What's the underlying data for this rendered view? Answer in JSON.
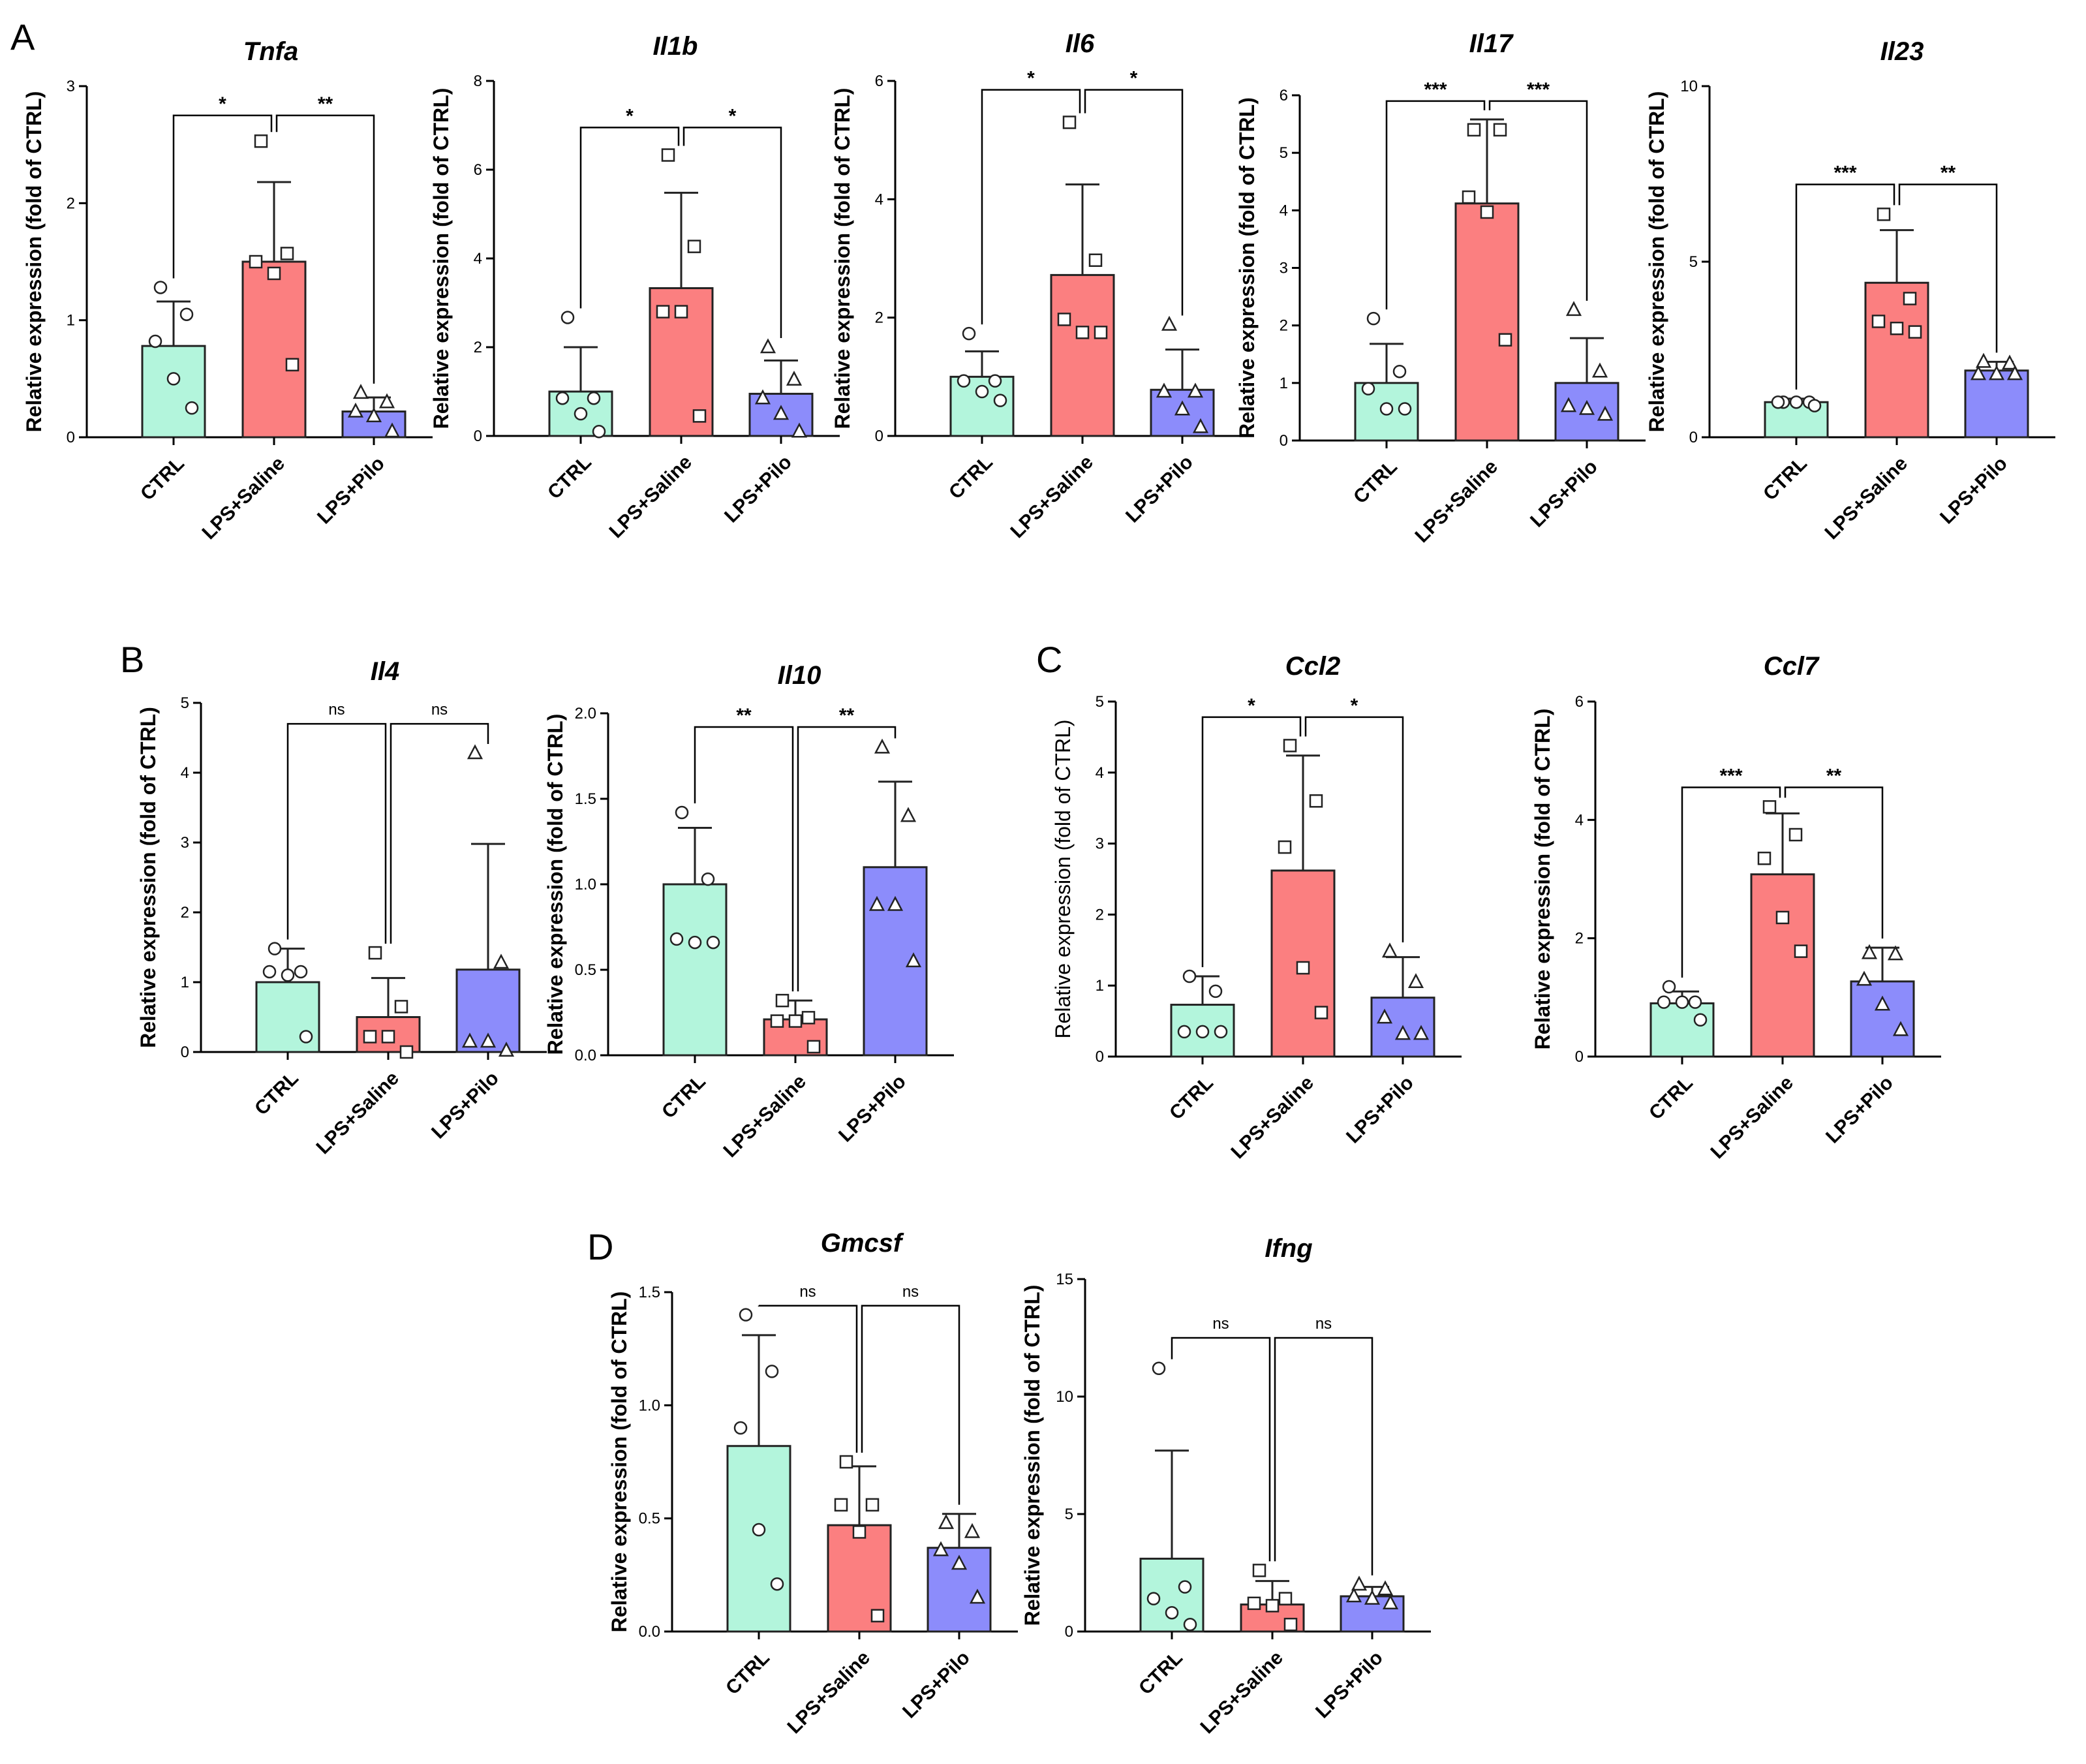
{
  "panel_letters": [
    "A",
    "B",
    "C",
    "D"
  ],
  "colors": {
    "CTRL": "#b3f5dc",
    "LPS+Saline": "#fb7f80",
    "LPS+Pilo": "#8c8cfb",
    "stroke": "#222222"
  },
  "chart_data": [
    {
      "type": "bar",
      "panel": "A",
      "title": "Tnfa",
      "ylabel": "Relative expression (fold of CTRL)",
      "categories": [
        "CTRL",
        "LPS+Saline",
        "LPS+Pilo"
      ],
      "ylim": [
        0,
        3
      ],
      "yticks": [
        "0",
        "1",
        "2",
        "3"
      ],
      "values": [
        0.78,
        1.5,
        0.22
      ],
      "sd": [
        0.38,
        0.68,
        0.12
      ],
      "points": [
        [
          1.28,
          1.05,
          0.82,
          0.5,
          0.25
        ],
        [
          2.53,
          1.57,
          1.5,
          1.4,
          0.62
        ],
        [
          0.38,
          0.3,
          0.22,
          0.18,
          0.05
        ]
      ],
      "comparisons": [
        {
          "from": 0,
          "to": 1,
          "label": "*",
          "y": 2.75
        },
        {
          "from": 1,
          "to": 2,
          "label": "**",
          "y": 2.75
        }
      ]
    },
    {
      "type": "bar",
      "panel": "A",
      "title": "Il1b",
      "ylabel": "Relative expression (fold of CTRL)",
      "categories": [
        "CTRL",
        "LPS+Saline",
        "LPS+Pilo"
      ],
      "ylim": [
        0,
        8
      ],
      "yticks": [
        "0",
        "2",
        "4",
        "6",
        "8"
      ],
      "values": [
        1.0,
        3.33,
        0.95
      ],
      "sd": [
        1.0,
        2.15,
        0.75
      ],
      "points": [
        [
          2.67,
          0.85,
          0.85,
          0.5,
          0.1
        ],
        [
          6.33,
          4.27,
          2.8,
          2.8,
          0.45
        ],
        [
          2.0,
          1.27,
          0.85,
          0.5,
          0.1
        ]
      ],
      "comparisons": [
        {
          "from": 0,
          "to": 1,
          "label": "*",
          "y": 6.95
        },
        {
          "from": 1,
          "to": 2,
          "label": "*",
          "y": 6.95
        }
      ]
    },
    {
      "type": "bar",
      "panel": "A",
      "title": "Il6",
      "ylabel": "Relative expression (fold of CTRL)",
      "categories": [
        "CTRL",
        "LPS+Saline",
        "LPS+Pilo"
      ],
      "ylim": [
        0,
        6
      ],
      "yticks": [
        "0",
        "2",
        "4",
        "6"
      ],
      "values": [
        1.0,
        2.72,
        0.78
      ],
      "sd": [
        0.43,
        1.53,
        0.68
      ],
      "points": [
        [
          1.73,
          0.93,
          0.93,
          0.75,
          0.6
        ],
        [
          5.3,
          2.97,
          1.97,
          1.75,
          1.75
        ],
        [
          1.88,
          0.75,
          0.75,
          0.45,
          0.15
        ]
      ],
      "comparisons": [
        {
          "from": 0,
          "to": 1,
          "label": "*",
          "y": 5.85
        },
        {
          "from": 1,
          "to": 2,
          "label": "*",
          "y": 5.85
        }
      ]
    },
    {
      "type": "bar",
      "panel": "A",
      "title": "Il17",
      "ylabel": "Relative expression (fold of CTRL)",
      "categories": [
        "CTRL",
        "LPS+Saline",
        "LPS+Pilo"
      ],
      "ylim": [
        0,
        6
      ],
      "yticks": [
        "0",
        "1",
        "2",
        "3",
        "4",
        "5",
        "6"
      ],
      "values": [
        1.0,
        4.12,
        1.0
      ],
      "sd": [
        0.68,
        1.46,
        0.78
      ],
      "points": [
        [
          2.12,
          1.2,
          0.9,
          0.55,
          0.55
        ],
        [
          5.4,
          5.4,
          4.23,
          3.97,
          1.75
        ],
        [
          2.27,
          1.2,
          0.6,
          0.55,
          0.45
        ]
      ],
      "comparisons": [
        {
          "from": 0,
          "to": 1,
          "label": "***",
          "y": 5.9
        },
        {
          "from": 1,
          "to": 2,
          "label": "***",
          "y": 5.9
        }
      ]
    },
    {
      "type": "bar",
      "panel": "A",
      "title": "Il23",
      "ylabel": "Relative expression (fold of CTRL)",
      "categories": [
        "CTRL",
        "LPS+Saline",
        "LPS+Pilo"
      ],
      "ylim": [
        0,
        10
      ],
      "yticks": [
        "0",
        "5",
        "10"
      ],
      "values": [
        1.0,
        4.4,
        1.9
      ],
      "sd": [
        0.1,
        1.5,
        0.25
      ],
      "points": [
        [
          1.0,
          1.0,
          1.0,
          1.0,
          0.9
        ],
        [
          6.35,
          3.95,
          3.3,
          3.1,
          3.0
        ],
        [
          2.15,
          2.1,
          1.8,
          1.8,
          1.8
        ]
      ],
      "comparisons": [
        {
          "from": 0,
          "to": 1,
          "label": "***",
          "y": 7.2
        },
        {
          "from": 1,
          "to": 2,
          "label": "**",
          "y": 7.2
        }
      ]
    },
    {
      "type": "bar",
      "panel": "B",
      "title": "Il4",
      "ylabel": "Relative expression (fold of CTRL)",
      "categories": [
        "CTRL",
        "LPS+Saline",
        "LPS+Pilo"
      ],
      "ylim": [
        0,
        5
      ],
      "yticks": [
        "0",
        "1",
        "2",
        "3",
        "4",
        "5"
      ],
      "values": [
        1.0,
        0.5,
        1.18
      ],
      "sd": [
        0.48,
        0.56,
        1.8
      ],
      "points": [
        [
          1.48,
          1.15,
          1.15,
          1.1,
          0.22
        ],
        [
          1.42,
          0.65,
          0.22,
          0.22,
          0.0
        ],
        [
          4.28,
          1.28,
          0.15,
          0.15,
          0.02
        ]
      ],
      "comparisons": [
        {
          "from": 0,
          "to": 1,
          "label": "ns",
          "y": 4.7
        },
        {
          "from": 1,
          "to": 2,
          "label": "ns",
          "y": 4.7
        }
      ]
    },
    {
      "type": "bar",
      "panel": "B",
      "title": "Il10",
      "ylabel": "Relative expression (fold of CTRL)",
      "categories": [
        "CTRL",
        "LPS+Saline",
        "LPS+Pilo"
      ],
      "ylim": [
        0,
        2.0
      ],
      "yticks": [
        "0.0",
        "0.5",
        "1.0",
        "1.5",
        "2.0"
      ],
      "values": [
        1.0,
        0.21,
        1.1
      ],
      "sd": [
        0.33,
        0.11,
        0.5
      ],
      "points": [
        [
          1.42,
          1.03,
          0.68,
          0.66,
          0.66
        ],
        [
          0.32,
          0.22,
          0.2,
          0.2,
          0.05
        ],
        [
          1.8,
          1.4,
          0.88,
          0.88,
          0.55
        ]
      ],
      "comparisons": [
        {
          "from": 0,
          "to": 1,
          "label": "**",
          "y": 1.92
        },
        {
          "from": 1,
          "to": 2,
          "label": "**",
          "y": 1.92
        }
      ]
    },
    {
      "type": "bar",
      "panel": "C",
      "title": "Ccl2",
      "ylabel": "Relative expression (fold of CTRL)",
      "categories": [
        "CTRL",
        "LPS+Saline",
        "LPS+Pilo"
      ],
      "ylim": [
        0,
        5
      ],
      "yticks": [
        "0",
        "1",
        "2",
        "3",
        "4",
        "5"
      ],
      "values": [
        0.73,
        2.62,
        0.83
      ],
      "sd": [
        0.4,
        1.62,
        0.57
      ],
      "points": [
        [
          1.13,
          0.92,
          0.35,
          0.35,
          0.35
        ],
        [
          4.38,
          3.6,
          2.95,
          1.25,
          0.62
        ],
        [
          1.48,
          1.05,
          0.55,
          0.32,
          0.32
        ]
      ],
      "comparisons": [
        {
          "from": 0,
          "to": 1,
          "label": "*",
          "y": 4.78
        },
        {
          "from": 1,
          "to": 2,
          "label": "*",
          "y": 4.78
        }
      ]
    },
    {
      "type": "bar",
      "panel": "C",
      "title": "Ccl7",
      "ylabel": "Relative expression (fold of CTRL)",
      "categories": [
        "CTRL",
        "LPS+Saline",
        "LPS+Pilo"
      ],
      "ylim": [
        0,
        6
      ],
      "yticks": [
        "0",
        "2",
        "4",
        "6"
      ],
      "values": [
        0.9,
        3.08,
        1.27
      ],
      "sd": [
        0.2,
        1.03,
        0.57
      ],
      "points": [
        [
          1.18,
          0.92,
          0.92,
          0.92,
          0.62
        ],
        [
          4.22,
          3.75,
          3.35,
          2.35,
          1.78
        ],
        [
          1.75,
          1.73,
          1.3,
          0.88,
          0.45
        ]
      ],
      "comparisons": [
        {
          "from": 0,
          "to": 1,
          "label": "***",
          "y": 4.55
        },
        {
          "from": 1,
          "to": 2,
          "label": "**",
          "y": 4.55
        }
      ]
    },
    {
      "type": "bar",
      "panel": "D",
      "title": "Gmcsf",
      "ylabel": "Relative expression (fold of CTRL)",
      "categories": [
        "CTRL",
        "LPS+Saline",
        "LPS+Pilo"
      ],
      "ylim": [
        0,
        1.5
      ],
      "yticks": [
        "0.0",
        "0.5",
        "1.0",
        "1.5"
      ],
      "values": [
        0.82,
        0.47,
        0.37
      ],
      "sd": [
        0.49,
        0.26,
        0.15
      ],
      "points": [
        [
          1.4,
          1.15,
          0.9,
          0.45,
          0.21
        ],
        [
          0.75,
          0.56,
          0.56,
          0.44,
          0.07
        ],
        [
          0.48,
          0.44,
          0.36,
          0.3,
          0.15
        ]
      ],
      "comparisons": [
        {
          "from": 0,
          "to": 1,
          "label": "ns",
          "y": 1.44
        },
        {
          "from": 1,
          "to": 2,
          "label": "ns",
          "y": 1.44
        }
      ]
    },
    {
      "type": "bar",
      "panel": "D",
      "title": "Ifng",
      "ylabel": "Relative expression (fold of CTRL)",
      "categories": [
        "CTRL",
        "LPS+Saline",
        "LPS+Pilo"
      ],
      "ylim": [
        0,
        15
      ],
      "yticks": [
        "0",
        "5",
        "10",
        "15"
      ],
      "values": [
        3.1,
        1.15,
        1.5
      ],
      "sd": [
        4.6,
        1.0,
        0.4
      ],
      "points": [
        [
          11.2,
          1.9,
          1.4,
          0.8,
          0.3
        ],
        [
          2.6,
          1.4,
          1.2,
          1.1,
          0.3
        ],
        [
          2.0,
          1.8,
          1.5,
          1.4,
          1.2
        ]
      ],
      "comparisons": [
        {
          "from": 0,
          "to": 1,
          "label": "ns",
          "y": 12.5
        },
        {
          "from": 1,
          "to": 2,
          "label": "ns",
          "y": 12.5
        }
      ]
    }
  ]
}
